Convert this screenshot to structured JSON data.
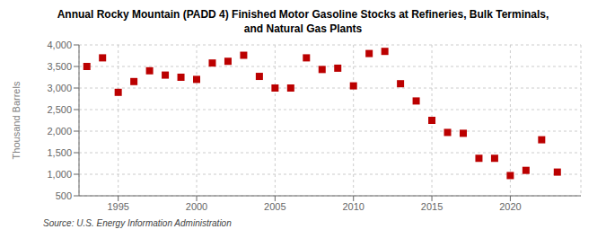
{
  "chart_data": {
    "type": "scatter",
    "title": "Annual Rocky Mountain (PADD 4) Finished Motor Gasoline Stocks at Refineries, Bulk Terminals,\nand Natural Gas Plants",
    "ylabel": "Thousand Barrels",
    "annotations": [
      "Source: U.S. Energy Information Administration"
    ],
    "color": "#bb0000",
    "marker": "square",
    "grid": true,
    "xlim": [
      1992.5,
      2024.5
    ],
    "xticks": [
      1995,
      2000,
      2005,
      2010,
      2015,
      2020
    ],
    "ylim": [
      500,
      4000
    ],
    "yticks": [
      500,
      {
        "value": 1000,
        "label": "1,000"
      },
      {
        "value": 1500,
        "label": "1,500"
      },
      {
        "value": 2000,
        "label": "2,000"
      },
      {
        "value": 2500,
        "label": "2,500"
      },
      {
        "value": 3000,
        "label": "3,000"
      },
      {
        "value": 3500,
        "label": "3,500"
      },
      {
        "value": 4000,
        "label": "4,000"
      }
    ],
    "x": [
      1993,
      1994,
      1995,
      1996,
      1997,
      1998,
      1999,
      2000,
      2001,
      2002,
      2003,
      2004,
      2005,
      2006,
      2007,
      2008,
      2009,
      2010,
      2011,
      2012,
      2013,
      2014,
      2015,
      2016,
      2017,
      2018,
      2019,
      2020,
      2021,
      2022,
      2023
    ],
    "values": [
      3500,
      3700,
      2900,
      3150,
      3400,
      3300,
      3250,
      3200,
      3580,
      3620,
      3760,
      3270,
      3000,
      3000,
      3700,
      3430,
      3460,
      3050,
      3800,
      3850,
      3100,
      2700,
      2250,
      1970,
      1950,
      1370,
      1370,
      970,
      1090,
      1800,
      1050
    ]
  }
}
